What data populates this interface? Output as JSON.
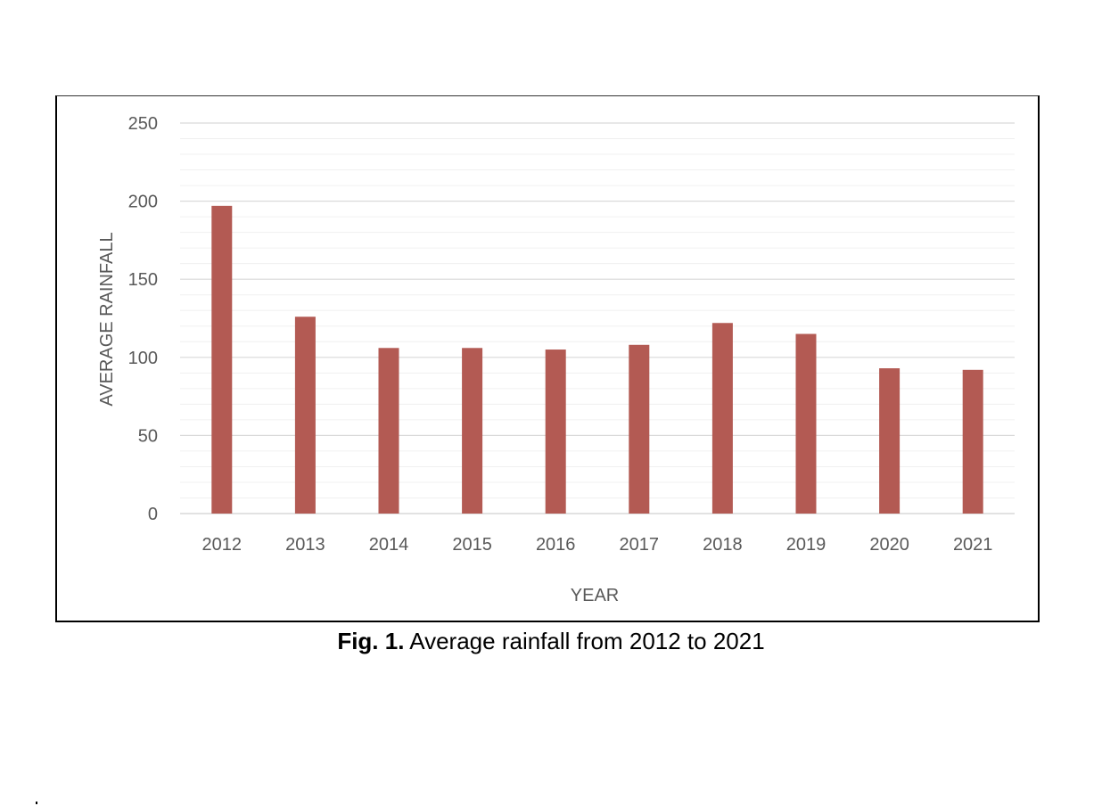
{
  "caption": {
    "label": "Fig. 1.",
    "text": " Average rainfall from 2012 to 2021"
  },
  "chart_data": {
    "type": "bar",
    "categories": [
      "2012",
      "2013",
      "2014",
      "2015",
      "2016",
      "2017",
      "2018",
      "2019",
      "2020",
      "2021"
    ],
    "values": [
      197,
      126,
      106,
      106,
      105,
      108,
      122,
      115,
      93,
      92
    ],
    "xlabel": "YEAR",
    "ylabel": "AVERAGE RAINFALL",
    "ylim": [
      0,
      250
    ],
    "yticks": [
      0,
      50,
      100,
      150,
      200,
      250
    ],
    "minor_grid_step": 10,
    "grid": true,
    "legend": "none",
    "bar_color": "#B35A53",
    "major_grid_color": "#D9D9D9",
    "minor_grid_color": "#F0F0F0",
    "tick_label_color": "#595959"
  }
}
